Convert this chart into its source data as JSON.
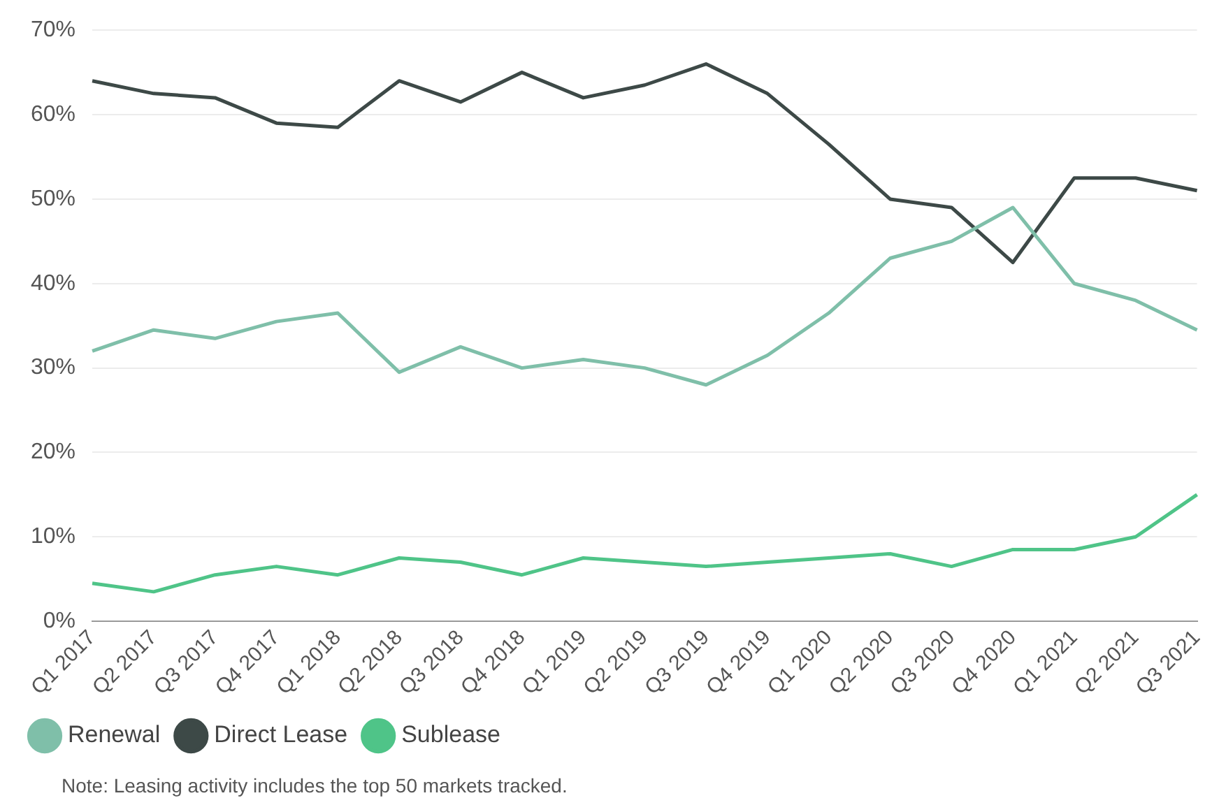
{
  "chart_data": {
    "type": "line",
    "categories": [
      "Q1 2017",
      "Q2 2017",
      "Q3 2017",
      "Q4 2017",
      "Q1 2018",
      "Q2 2018",
      "Q3 2018",
      "Q4 2018",
      "Q1 2019",
      "Q2 2019",
      "Q3 2019",
      "Q4 2019",
      "Q1 2020",
      "Q2 2020",
      "Q3 2020",
      "Q4 2020",
      "Q1 2021",
      "Q2 2021",
      "Q3 2021"
    ],
    "series": [
      {
        "name": "Renewal",
        "color": "#7fbfa9",
        "values": [
          32,
          34.5,
          33.5,
          35.5,
          36.5,
          29.5,
          32.5,
          30,
          31,
          30,
          28,
          31.5,
          36.5,
          43,
          45,
          49,
          40,
          38,
          34.5
        ]
      },
      {
        "name": "Direct Lease",
        "color": "#3d4947",
        "values": [
          64,
          62.5,
          62,
          59,
          58.5,
          64,
          61.5,
          65,
          62,
          63.5,
          66,
          62.5,
          56.5,
          50,
          49,
          42.5,
          52.5,
          52.5,
          51
        ]
      },
      {
        "name": "Sublease",
        "color": "#4fc488",
        "values": [
          4.5,
          3.5,
          5.5,
          6.5,
          5.5,
          7.5,
          7,
          5.5,
          7.5,
          7,
          6.5,
          7,
          7.5,
          8,
          6.5,
          8.5,
          8.5,
          10,
          15
        ]
      }
    ],
    "ylim": [
      0,
      70
    ],
    "yticks": [
      {
        "value": 0,
        "label": "0%"
      },
      {
        "value": 10,
        "label": "10%"
      },
      {
        "value": 20,
        "label": "20%"
      },
      {
        "value": 30,
        "label": "30%"
      },
      {
        "value": 40,
        "label": "40%"
      },
      {
        "value": 50,
        "label": "50%"
      },
      {
        "value": 60,
        "label": "60%"
      },
      {
        "value": 70,
        "label": "70%"
      }
    ],
    "grid": "y",
    "legend": "bottom left",
    "marker": "none",
    "line_style": "solid",
    "annotations": [
      "Note: Leasing activity includes the top 50 markets tracked."
    ]
  }
}
